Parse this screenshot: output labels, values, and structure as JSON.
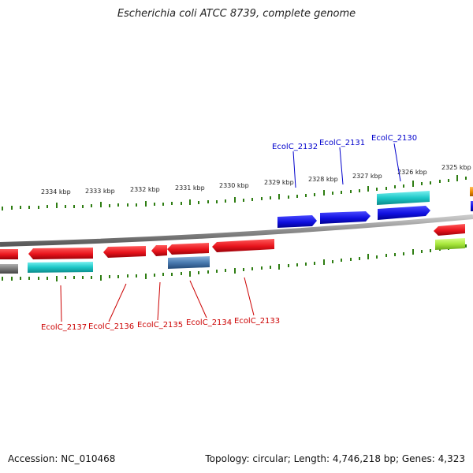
{
  "title": "Escherichia coli ATCC 8739, complete genome",
  "footer": {
    "accession": "Accession: NC_010468",
    "summary": "Topology: circular; Length: 4,746,218 bp; Genes: 4,323"
  },
  "colors": {
    "backbone": "#8c8c8c",
    "tick": "#2e7d12",
    "gene_red": "#e8141c",
    "gene_blue": "#1010e0",
    "gene_cyan": "#1ec8c8",
    "gene_steel": "#4a7ab0",
    "gene_lime": "#a8e83c",
    "gene_orange": "#f08c00",
    "gene_gray": "#7a7a7a",
    "label_red": "#cc0000",
    "label_blue": "#0000cc"
  },
  "scale_labels": [
    "2334 kbp",
    "2333 kbp",
    "2332 kbp",
    "2331 kbp",
    "2330 kbp",
    "2329 kbp",
    "2328 kbp",
    "2327 kbp",
    "2326 kbp",
    "2325 kbp"
  ],
  "genes_top": [
    "EcolC_2132",
    "EcolC_2131",
    "EcolC_2130"
  ],
  "genes_bottom": [
    "EcolC_2137",
    "EcolC_2136",
    "EcolC_2135",
    "EcolC_2134",
    "EcolC_2133"
  ]
}
